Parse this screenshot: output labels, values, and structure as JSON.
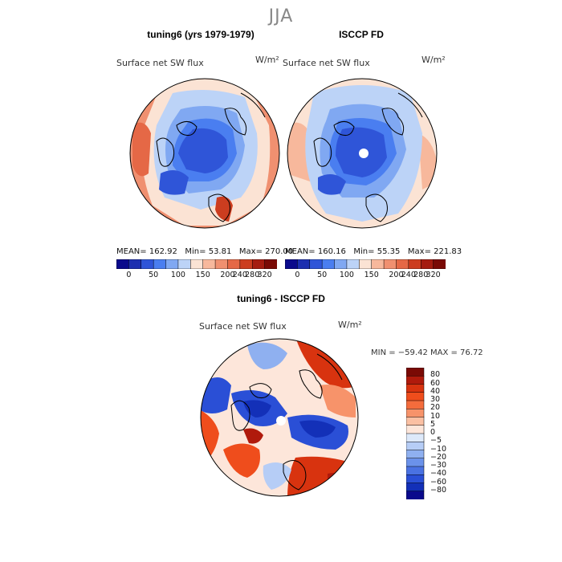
{
  "season": "JJA",
  "panels": {
    "model": {
      "title": "tuning6 (yrs 1979-1979)",
      "var_label": "Surface net SW flux",
      "units": "W/m²",
      "stats": {
        "mean_label": "MEAN=",
        "mean": "162.92",
        "min_label": "Min=",
        "min": "53.81",
        "max_label": "Max=",
        "max": "270.00"
      }
    },
    "obs": {
      "title": "ISCCP FD",
      "var_label": "Surface net SW flux",
      "units": "W/m²",
      "stats": {
        "mean_label": "MEAN=",
        "mean": "160.16",
        "min_label": "Min=",
        "min": "55.35",
        "max_label": "Max=",
        "max": "221.83"
      }
    },
    "diff": {
      "title": "tuning6 - ISCCP FD",
      "var_label": "Surface net SW flux",
      "units": "W/m²",
      "minmax": "MIN = −59.42 MAX =  76.72"
    }
  },
  "chart_data": [
    {
      "type": "heatmap",
      "title": "tuning6 (yrs 1979-1979)",
      "projection": "north polar stereographic",
      "variable": "Surface net SW flux (W/m^2)",
      "colorbar_levels": [
        0,
        50,
        100,
        150,
        200,
        240,
        280,
        320
      ],
      "colorbar_ticks": [
        "0",
        "50",
        "100",
        "150",
        "200",
        "240",
        "280",
        "320"
      ],
      "colorbar_colors": [
        "#0a0a8c",
        "#1c2fb0",
        "#2f55d8",
        "#4a7ef0",
        "#80a8f2",
        "#bcd3f7",
        "#fbe3d4",
        "#f7b89c",
        "#f09070",
        "#e56846",
        "#cc3d1f",
        "#a51c10",
        "#7a0a05"
      ],
      "mean": 162.92,
      "min": 53.81,
      "max": 270.0
    },
    {
      "type": "heatmap",
      "title": "ISCCP FD",
      "projection": "north polar stereographic",
      "variable": "Surface net SW flux (W/m^2)",
      "colorbar_levels": [
        0,
        50,
        100,
        150,
        200,
        240,
        280,
        320
      ],
      "colorbar_ticks": [
        "0",
        "50",
        "100",
        "150",
        "200",
        "240",
        "280",
        "320"
      ],
      "colorbar_colors": [
        "#0a0a8c",
        "#1c2fb0",
        "#2f55d8",
        "#4a7ef0",
        "#80a8f2",
        "#bcd3f7",
        "#fbe3d4",
        "#f7b89c",
        "#f09070",
        "#e56846",
        "#cc3d1f",
        "#a51c10",
        "#7a0a05"
      ],
      "mean": 160.16,
      "min": 55.35,
      "max": 221.83
    },
    {
      "type": "heatmap",
      "title": "tuning6 - ISCCP FD",
      "projection": "north polar stereographic",
      "variable": "Surface net SW flux (W/m^2)",
      "colorbar_levels": [
        -80,
        -60,
        -40,
        -30,
        -20,
        -10,
        -5,
        0,
        5,
        10,
        20,
        30,
        40,
        60,
        80
      ],
      "colorbar_ticks": [
        "80",
        "60",
        "40",
        "30",
        "20",
        "10",
        "5",
        "0",
        "−5",
        "−10",
        "−20",
        "−30",
        "−40",
        "−60",
        "−80"
      ],
      "colorbar_colors": [
        "#7a0a05",
        "#b01a0c",
        "#d8330f",
        "#ef4d1c",
        "#f46c3c",
        "#f7936a",
        "#fbc0a3",
        "#fde6da",
        "#dde9fa",
        "#b6cdf6",
        "#8fb0f0",
        "#6b92ea",
        "#4a72e2",
        "#2a4fd6",
        "#1330b8",
        "#0a0a8c"
      ],
      "min": -59.42,
      "max": 76.72
    }
  ]
}
